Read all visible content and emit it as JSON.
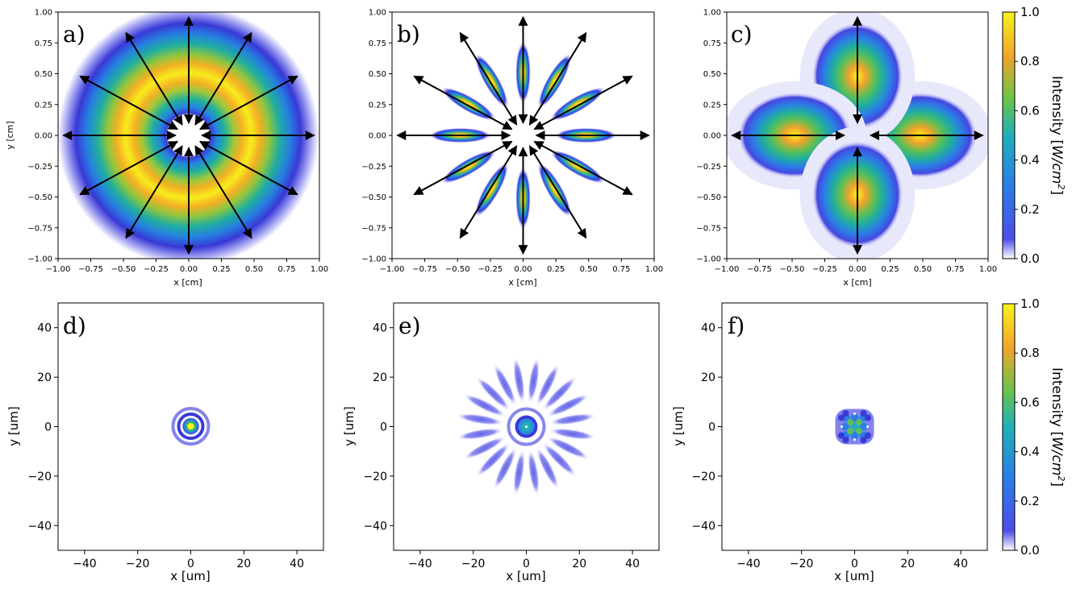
{
  "chart_data": [
    {
      "panel": "a)",
      "type": "heatmap",
      "pattern": "annular ring of intensity with radial outward arrows",
      "xlabel": "x [cm]",
      "ylabel": "y [cm]",
      "xlim": [
        -1.0,
        1.0
      ],
      "ylim": [
        -1.0,
        1.0
      ],
      "xticks": [
        "−1.00",
        "−0.75",
        "−0.50",
        "−0.25",
        "0.00",
        "0.25",
        "0.50",
        "0.75",
        "1.00"
      ],
      "yticks": [
        "−1.00",
        "−0.75",
        "−0.50",
        "−0.25",
        "0.00",
        "0.25",
        "0.50",
        "0.75",
        "1.00"
      ],
      "ring_peak_radius_cm": 0.48,
      "ring_width_cm": 0.22,
      "inner_hole_radius_cm": 0.17,
      "outer_radius_cm": 1.0,
      "arrows": {
        "count": 12,
        "inner_radius_cm": 0.1,
        "outer_radius_cm": 0.96
      }
    },
    {
      "panel": "b)",
      "type": "heatmap",
      "pattern": "twelve elongated radial lobes (star) with arrows",
      "xlabel": "x [cm]",
      "ylabel": "",
      "xlim": [
        -1.0,
        1.0
      ],
      "ylim": [
        -1.0,
        1.0
      ],
      "xticks": [
        "−1.00",
        "−0.75",
        "−0.50",
        "−0.25",
        "0.00",
        "0.25",
        "0.50",
        "0.75",
        "1.00"
      ],
      "yticks": [
        "−1.00",
        "−0.75",
        "−0.50",
        "−0.25",
        "0.00",
        "0.25",
        "0.50",
        "0.75",
        "1.00"
      ],
      "lobes": 12,
      "lobe_center_radius_cm": 0.48,
      "lobe_length_cm": 0.38,
      "lobe_halfwidth_cm": 0.05,
      "inner_hole_radius_cm": 0.17,
      "arrows": {
        "count": 12,
        "inner_radius_cm": 0.1,
        "outer_radius_cm": 0.96
      }
    },
    {
      "panel": "c)",
      "type": "heatmap",
      "pattern": "four lobes on the axes with arrows",
      "xlabel": "x [cm]",
      "ylabel": "",
      "xlim": [
        -1.0,
        1.0
      ],
      "ylim": [
        -1.0,
        1.0
      ],
      "xticks": [
        "−1.00",
        "−0.75",
        "−0.50",
        "−0.25",
        "0.00",
        "0.25",
        "0.50",
        "0.75",
        "1.00"
      ],
      "yticks": [
        "−1.00",
        "−0.75",
        "−0.50",
        "−0.25",
        "0.00",
        "0.25",
        "0.50",
        "0.75",
        "1.00"
      ],
      "lobes": 4,
      "lobe_center_radius_cm": 0.48,
      "lobe_radial_sigma_cm": 0.2,
      "lobe_tangential_sigma_cm": 0.16,
      "arrows": {
        "count": 4,
        "inner_radius_cm": 0.1,
        "outer_radius_cm": 0.96
      }
    },
    {
      "panel": "d)",
      "type": "heatmap",
      "pattern": "central focal spot with surrounding rings",
      "xlabel": "x [um]",
      "ylabel": "y [um]",
      "xlim": [
        -50,
        50
      ],
      "ylim": [
        -50,
        50
      ],
      "xticks": [
        "−40",
        "−20",
        "0",
        "20",
        "40"
      ],
      "yticks": [
        "−40",
        "−20",
        "0",
        "20",
        "40"
      ]
    },
    {
      "panel": "e)",
      "type": "heatmap",
      "pattern": "central spot with a ring and radial side lobes",
      "xlabel": "x [um]",
      "ylabel": "y [um]",
      "xlim": [
        -50,
        50
      ],
      "ylim": [
        -50,
        50
      ],
      "xticks": [
        "−40",
        "−20",
        "0",
        "20",
        "40"
      ],
      "yticks": [
        "−40",
        "−20",
        "0",
        "20",
        "40"
      ],
      "side_lobes": 20
    },
    {
      "panel": "f)",
      "type": "heatmap",
      "pattern": "compact interference pattern of spots",
      "xlabel": "x [um]",
      "ylabel": "y [um]",
      "xlim": [
        -50,
        50
      ],
      "ylim": [
        -50,
        50
      ],
      "xticks": [
        "−40",
        "−20",
        "0",
        "20",
        "40"
      ],
      "yticks": [
        "−40",
        "−20",
        "0",
        "20",
        "40"
      ]
    }
  ],
  "colorbars": [
    {
      "label": "Intensity [W/cm²]",
      "label_plain": "Intensity [",
      "label_unit": "W/cm",
      "label_exp": "2",
      "label_close": "]",
      "ticks": [
        "0.0",
        "0.2",
        "0.4",
        "0.6",
        "0.8",
        "1.0"
      ],
      "range": [
        0.0,
        1.0
      ]
    },
    {
      "label": "Intensity [W/cm²]",
      "label_plain": "Intensity [",
      "label_unit": "W/cm",
      "label_exp": "2",
      "label_close": "]",
      "ticks": [
        "0.0",
        "0.2",
        "0.4",
        "0.6",
        "0.8",
        "1.0"
      ],
      "range": [
        0.0,
        1.0
      ]
    }
  ],
  "colormap_stops": [
    "#ffffff",
    "#3b3be0",
    "#1e88e5",
    "#26b5a5",
    "#98c93a",
    "#f5a623",
    "#f8e71c"
  ]
}
